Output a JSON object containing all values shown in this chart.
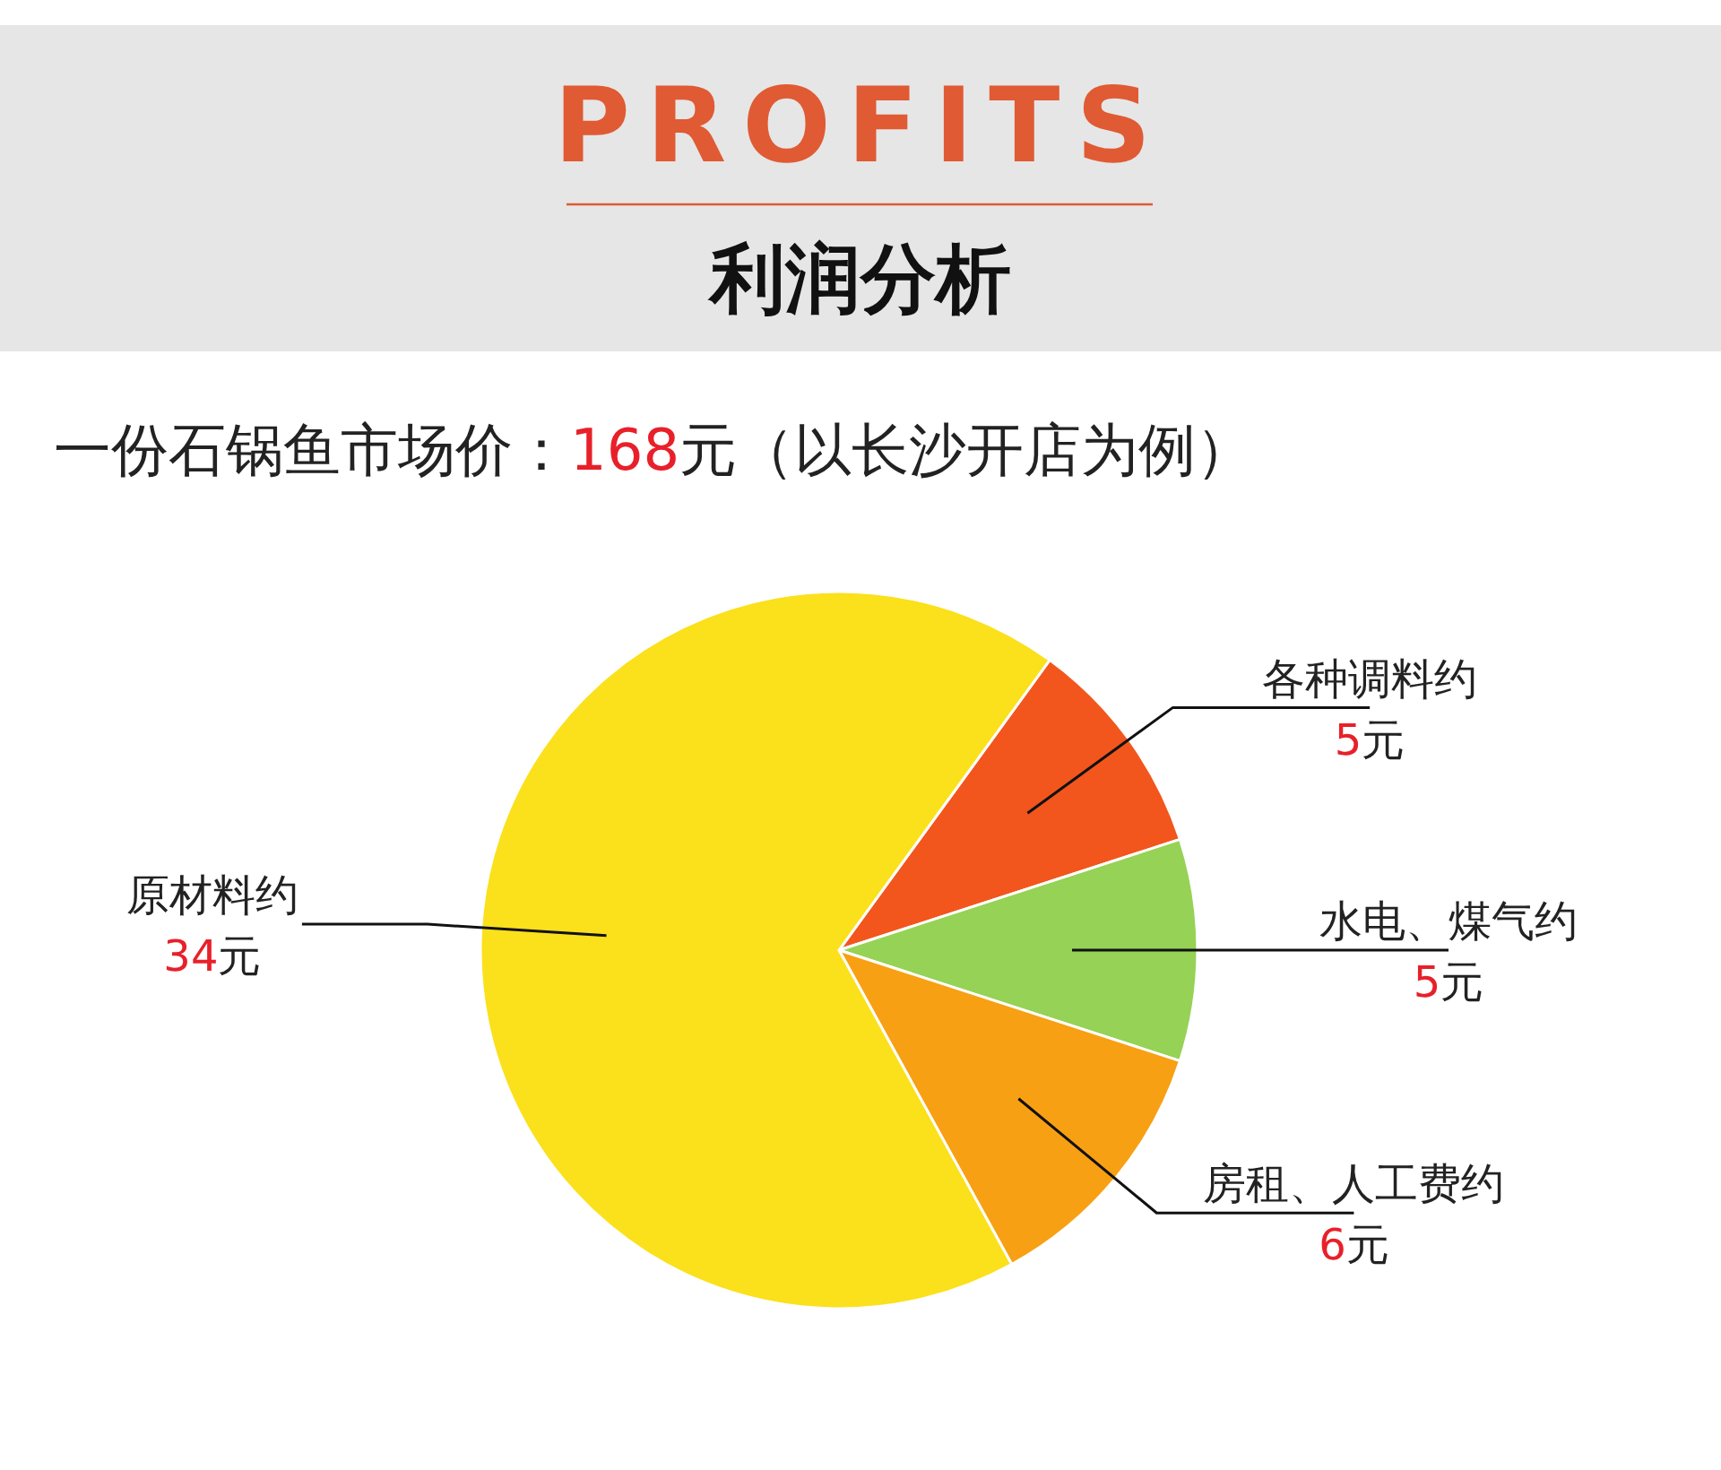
{
  "chart_data": {
    "type": "pie",
    "title": "PROFITS",
    "subtitle": "利润分析",
    "annotations": [
      "一份石锅鱼市场价：168元（以长沙开店为例）"
    ],
    "categories": [
      "各种调料约",
      "水电、煤气约",
      "房租、人工费约",
      "原材料约"
    ],
    "values": [
      5,
      5,
      6,
      34
    ],
    "colors": [
      "#f2561d",
      "#96d255",
      "#f8a013",
      "#fbe01c"
    ],
    "value_labels": [
      "5元",
      "5元",
      "6元",
      "34元"
    ]
  }
}
